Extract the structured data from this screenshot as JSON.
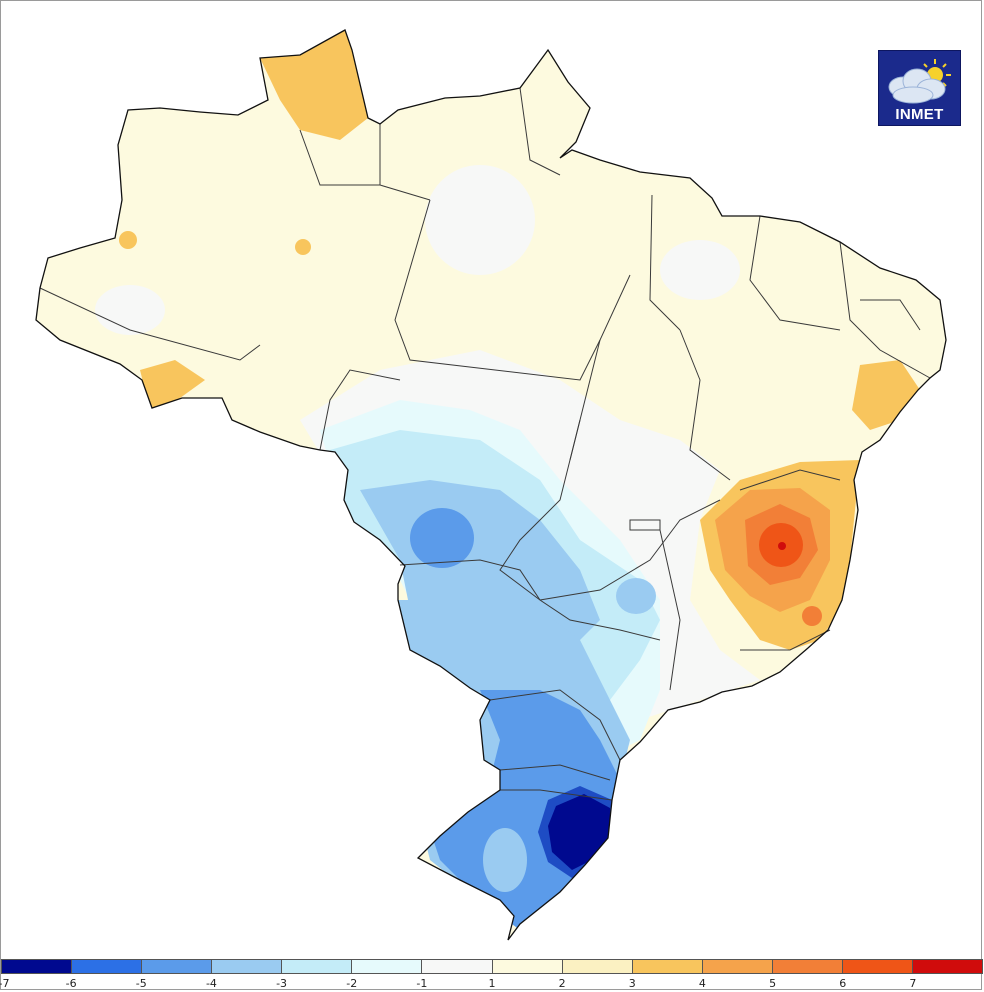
{
  "logo": {
    "text": "INMET",
    "icon": "cloud-sun-icon"
  },
  "legend": {
    "ticks": [
      "-7",
      "-6",
      "-5",
      "-4",
      "-3",
      "-2",
      "-1",
      "1",
      "2",
      "3",
      "4",
      "5",
      "6",
      "7"
    ],
    "colors": [
      "#00098f",
      "#2c70e6",
      "#5b9bea",
      "#9acbf1",
      "#c4ecf8",
      "#e6fafc",
      "#f7f8f7",
      "#fdfadf",
      "#fbf1c2",
      "#f8c55d",
      "#f5a34b",
      "#f27f37",
      "#ef5517",
      "#d00c0c"
    ]
  },
  "map": {
    "background": "#fdfadf",
    "regions": [
      {
        "name": "north-yellow-bg",
        "value": 1.5,
        "color": "#fdfadf"
      },
      {
        "name": "roraima-warm-spot",
        "value": 3.2,
        "color": "#f8c55d"
      },
      {
        "name": "acre-warm-spot",
        "value": 3.1,
        "color": "#f8c55d"
      },
      {
        "name": "central-neutral-band",
        "value": 0,
        "color": "#f7f8f7"
      },
      {
        "name": "center-west-cool",
        "value": -2.5,
        "color": "#c4ecf8"
      },
      {
        "name": "mato-grosso-do-sul-cool",
        "value": -4,
        "color": "#9acbf1"
      },
      {
        "name": "southeast-cool",
        "value": -1.5,
        "color": "#e6fafc"
      },
      {
        "name": "parana-santa-catarina-cold",
        "value": -5,
        "color": "#5b9bea"
      },
      {
        "name": "rio-grande-do-sul-coldest",
        "value": -7,
        "color": "#00098f"
      },
      {
        "name": "minas-bahia-warm",
        "value": 4,
        "color": "#f8c55d"
      },
      {
        "name": "minas-hot-core",
        "value": 7,
        "color": "#d00c0c"
      },
      {
        "name": "pernambuco-warm-spot",
        "value": 3.5,
        "color": "#f8c55d"
      }
    ]
  }
}
